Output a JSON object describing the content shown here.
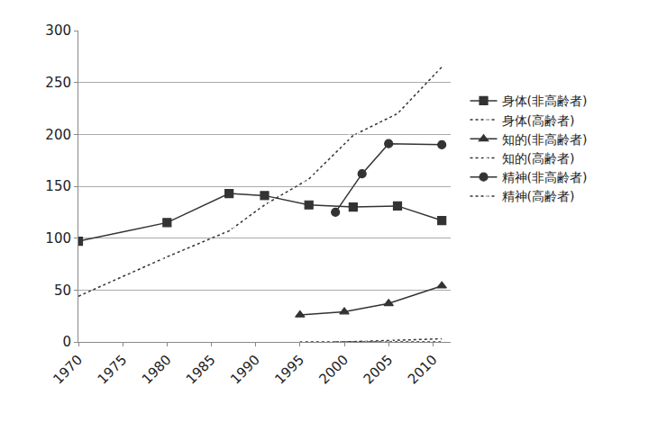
{
  "chart_data": {
    "type": "line",
    "xlim": [
      1970,
      2012
    ],
    "xticks": [
      1970,
      1975,
      1980,
      1985,
      1990,
      1995,
      2000,
      2005,
      2010
    ],
    "ylim": [
      0,
      300
    ],
    "yticks": [
      0,
      50,
      100,
      150,
      200,
      250,
      300
    ],
    "grid": true,
    "legend": "right",
    "series": [
      {
        "name": "身体(非高齢者)",
        "color": "#333333",
        "marker": "square",
        "line_style": "solid",
        "x": [
          1970,
          1980,
          1987,
          1991,
          1996,
          2001,
          2006,
          2011
        ],
        "values": [
          97,
          115,
          143,
          141,
          132,
          130,
          131,
          117
        ]
      },
      {
        "name": "身体(高齢者)",
        "color": "#333333",
        "marker": "square-open",
        "line_style": "dot",
        "x": [
          1970,
          1980,
          1987,
          1991,
          1996,
          2001,
          2006,
          2011
        ],
        "values": [
          44,
          82,
          107,
          132,
          157,
          199,
          220,
          265
        ]
      },
      {
        "name": "知的(非高齢者)",
        "color": "#333333",
        "marker": "triangle-up",
        "line_style": "solid",
        "x": [
          1995,
          2000,
          2005,
          2011
        ],
        "values": [
          26,
          29,
          37,
          54
        ]
      },
      {
        "name": "知的(高齢者)",
        "color": "#333333",
        "marker": "triangle-up-open",
        "line_style": "dot",
        "x": [
          1995,
          2000,
          2011
        ],
        "values": [
          0,
          0,
          3
        ]
      },
      {
        "name": "精神(非高齢者)",
        "color": "#333333",
        "marker": "circle",
        "line_style": "solid",
        "x": [
          1999,
          2002,
          2005,
          2011
        ],
        "values": [
          125,
          162,
          191,
          190
        ]
      },
      {
        "name": "精神(高齢者)",
        "color": "#333333",
        "marker": "circle-open",
        "line_style": "dot",
        "x": [
          1999,
          2002,
          2005,
          2011
        ],
        "values": [
          0,
          0,
          0,
          0
        ]
      }
    ]
  }
}
